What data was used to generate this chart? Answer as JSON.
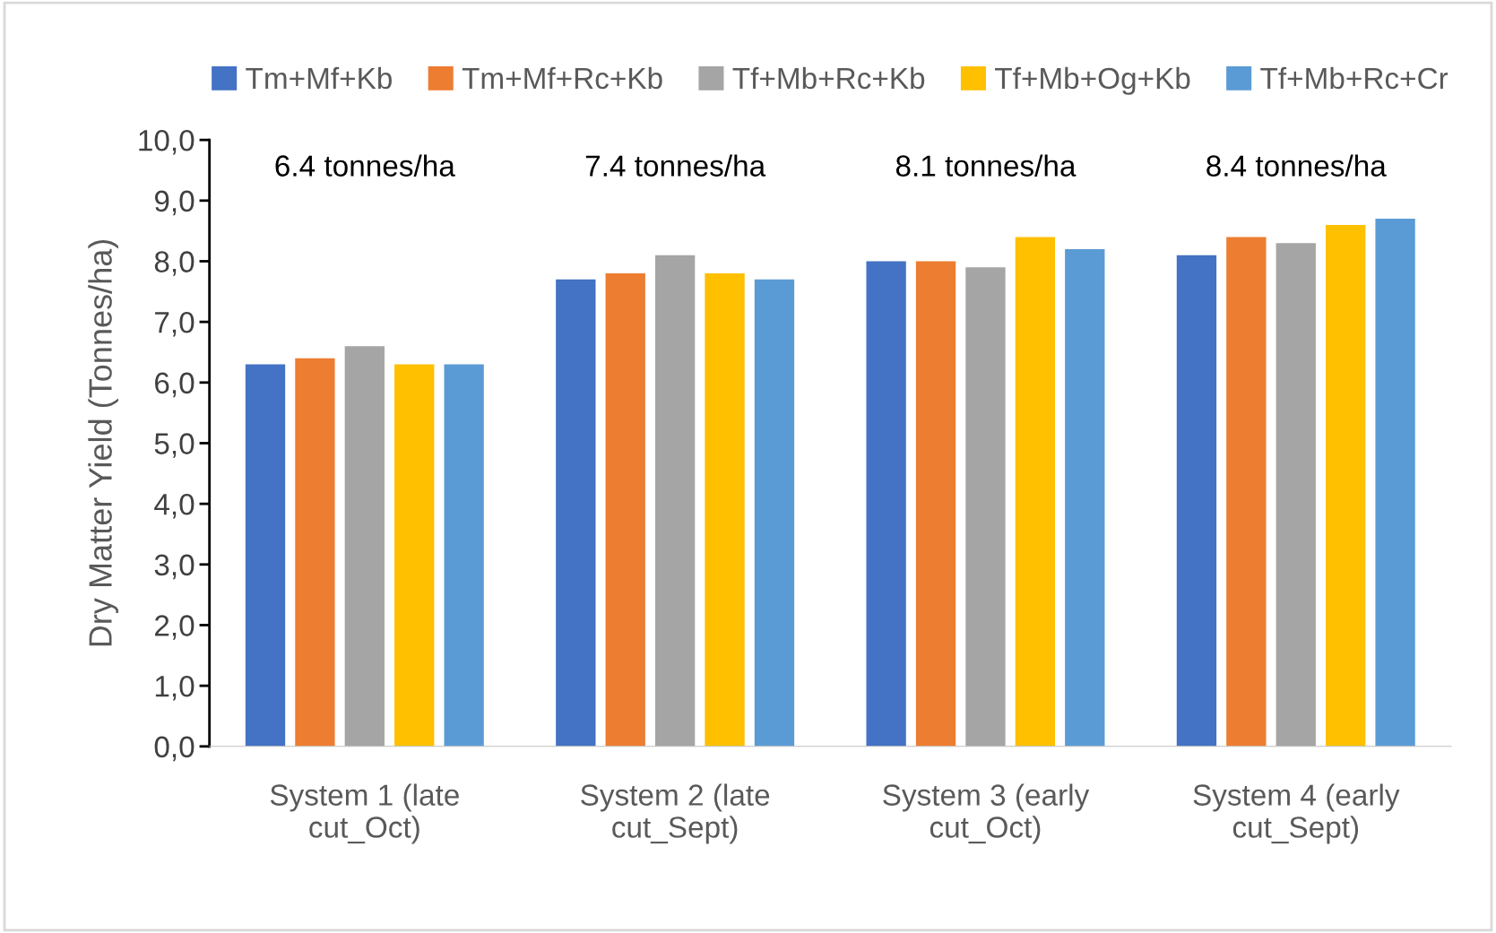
{
  "chart_data": {
    "type": "bar",
    "ylabel": "Dry Matter Yield (Tonnes/ha)",
    "categories": [
      "System 1 (late\ncut_Oct)",
      "System 2 (late\ncut_Sept)",
      "System 3 (early\ncut_Oct)",
      "System 4 (early\ncut_Sept)"
    ],
    "series": [
      {
        "name": "Tm+Mf+Kb",
        "color": "#4472c4",
        "values": [
          6.3,
          7.7,
          8.0,
          8.1
        ]
      },
      {
        "name": "Tm+Mf+Rc+Kb",
        "color": "#ed7d31",
        "values": [
          6.4,
          7.8,
          8.0,
          8.4
        ]
      },
      {
        "name": "Tf+Mb+Rc+Kb",
        "color": "#a5a5a5",
        "values": [
          6.6,
          8.1,
          7.9,
          8.3
        ]
      },
      {
        "name": "Tf+Mb+Og+Kb",
        "color": "#ffc000",
        "values": [
          6.3,
          7.8,
          8.4,
          8.6
        ]
      },
      {
        "name": "Tf+Mb+Rc+Cr",
        "color": "#5b9bd5",
        "values": [
          6.3,
          7.7,
          8.2,
          8.7
        ]
      }
    ],
    "ylim": [
      0,
      10
    ],
    "yticks": [
      {
        "value": 0,
        "label": "0,0"
      },
      {
        "value": 1,
        "label": "1,0"
      },
      {
        "value": 2,
        "label": "2,0"
      },
      {
        "value": 3,
        "label": "3,0"
      },
      {
        "value": 4,
        "label": "4,0"
      },
      {
        "value": 5,
        "label": "5,0"
      },
      {
        "value": 6,
        "label": "6,0"
      },
      {
        "value": 7,
        "label": "7,0"
      },
      {
        "value": 8,
        "label": "8,0"
      },
      {
        "value": 9,
        "label": "9,0"
      },
      {
        "value": 10,
        "label": "10,0"
      }
    ],
    "annotations": [
      "6.4 tonnes/ha",
      "7.4 tonnes/ha",
      "8.1 tonnes/ha",
      "8.4 tonnes/ha"
    ],
    "grid": false,
    "legend": "top"
  }
}
